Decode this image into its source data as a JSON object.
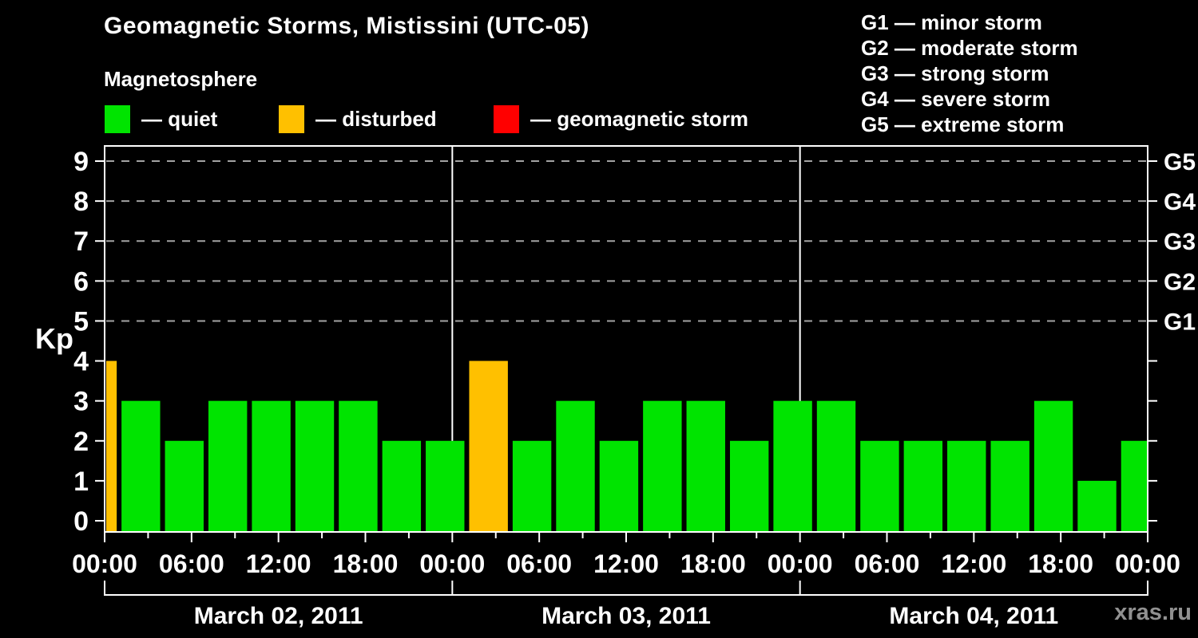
{
  "header": {
    "title": "Geomagnetic Storms, Mistissini (UTC-05)",
    "subtitle": "Magnetosphere"
  },
  "legend": {
    "items": [
      {
        "name": "quiet",
        "label": "— quiet",
        "color": "#00e400"
      },
      {
        "name": "disturbed",
        "label": "— disturbed",
        "color": "#ffc000"
      },
      {
        "name": "geomagnetic-storm",
        "label": "— geomagnetic storm",
        "color": "#ff0000"
      }
    ]
  },
  "storm_scale_legend": [
    "G1 — minor storm",
    "G2 — moderate storm",
    "G3 — strong storm",
    "G4 — severe storm",
    "G5 — extreme storm"
  ],
  "watermark": "xras.ru",
  "chart_data": {
    "type": "bar",
    "title": "Geomagnetic Storms, Mistissini (UTC-05)",
    "ylabel": "Kp",
    "ylim": [
      0,
      9
    ],
    "yticks": [
      0,
      1,
      2,
      3,
      4,
      5,
      6,
      7,
      8,
      9
    ],
    "gridlines_kp": [
      5,
      6,
      7,
      8,
      9
    ],
    "grid": "dashed horizontal at storm levels only",
    "right_axis_labels": [
      {
        "kp": 5,
        "label": "G1"
      },
      {
        "kp": 6,
        "label": "G2"
      },
      {
        "kp": 7,
        "label": "G3"
      },
      {
        "kp": 8,
        "label": "G4"
      },
      {
        "kp": 9,
        "label": "G5"
      }
    ],
    "x_hours_span": 72,
    "x_tick_step_hours": 3,
    "x_label_step_hours": 6,
    "x_time_labels": [
      "00:00",
      "06:00",
      "12:00",
      "18:00",
      "00:00",
      "06:00",
      "12:00",
      "18:00",
      "00:00",
      "06:00",
      "12:00",
      "18:00",
      "00:00"
    ],
    "day_labels": [
      "March 02, 2011",
      "March 03, 2011",
      "March 04, 2011"
    ],
    "day_boundaries_hours": [
      24,
      48
    ],
    "colors": {
      "quiet": "#00e400",
      "disturbed": "#ffc000",
      "storm": "#ff0000"
    },
    "bars": [
      {
        "start_hour": 0,
        "end_hour": 1,
        "kp": 4,
        "status": "disturbed"
      },
      {
        "start_hour": 1,
        "end_hour": 4,
        "kp": 3,
        "status": "quiet"
      },
      {
        "start_hour": 4,
        "end_hour": 7,
        "kp": 2,
        "status": "quiet"
      },
      {
        "start_hour": 7,
        "end_hour": 10,
        "kp": 3,
        "status": "quiet"
      },
      {
        "start_hour": 10,
        "end_hour": 13,
        "kp": 3,
        "status": "quiet"
      },
      {
        "start_hour": 13,
        "end_hour": 16,
        "kp": 3,
        "status": "quiet"
      },
      {
        "start_hour": 16,
        "end_hour": 19,
        "kp": 3,
        "status": "quiet"
      },
      {
        "start_hour": 19,
        "end_hour": 22,
        "kp": 2,
        "status": "quiet"
      },
      {
        "start_hour": 22,
        "end_hour": 25,
        "kp": 2,
        "status": "quiet"
      },
      {
        "start_hour": 25,
        "end_hour": 28,
        "kp": 4,
        "status": "disturbed"
      },
      {
        "start_hour": 28,
        "end_hour": 31,
        "kp": 2,
        "status": "quiet"
      },
      {
        "start_hour": 31,
        "end_hour": 34,
        "kp": 3,
        "status": "quiet"
      },
      {
        "start_hour": 34,
        "end_hour": 37,
        "kp": 2,
        "status": "quiet"
      },
      {
        "start_hour": 37,
        "end_hour": 40,
        "kp": 3,
        "status": "quiet"
      },
      {
        "start_hour": 40,
        "end_hour": 43,
        "kp": 3,
        "status": "quiet"
      },
      {
        "start_hour": 43,
        "end_hour": 46,
        "kp": 2,
        "status": "quiet"
      },
      {
        "start_hour": 46,
        "end_hour": 49,
        "kp": 3,
        "status": "quiet"
      },
      {
        "start_hour": 49,
        "end_hour": 52,
        "kp": 3,
        "status": "quiet"
      },
      {
        "start_hour": 52,
        "end_hour": 55,
        "kp": 2,
        "status": "quiet"
      },
      {
        "start_hour": 55,
        "end_hour": 58,
        "kp": 2,
        "status": "quiet"
      },
      {
        "start_hour": 58,
        "end_hour": 61,
        "kp": 2,
        "status": "quiet"
      },
      {
        "start_hour": 61,
        "end_hour": 64,
        "kp": 2,
        "status": "quiet"
      },
      {
        "start_hour": 64,
        "end_hour": 67,
        "kp": 3,
        "status": "quiet"
      },
      {
        "start_hour": 67,
        "end_hour": 70,
        "kp": 1,
        "status": "quiet"
      },
      {
        "start_hour": 70,
        "end_hour": 72,
        "kp": 2,
        "status": "quiet"
      }
    ]
  }
}
